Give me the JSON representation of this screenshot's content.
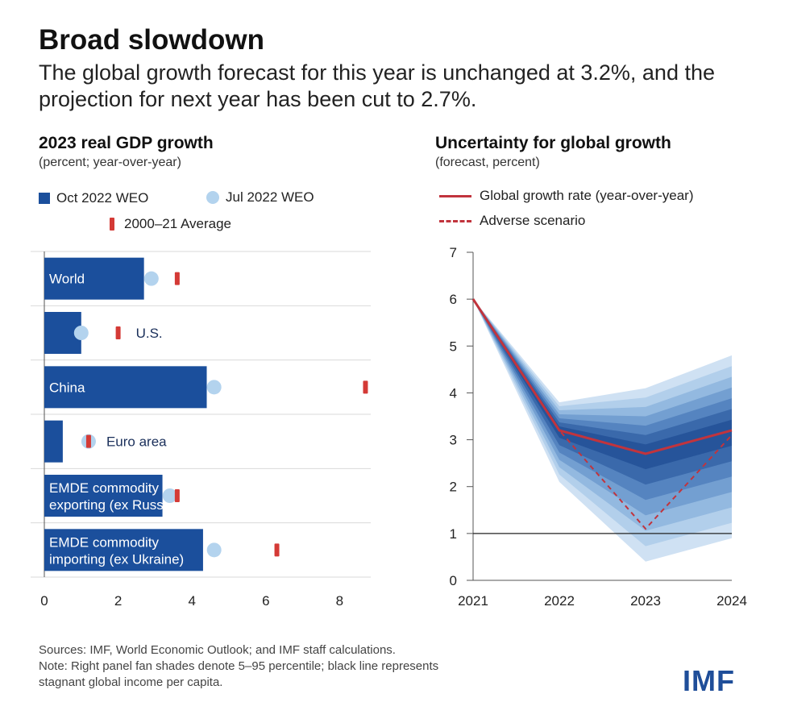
{
  "header": {
    "title": "Broad slowdown",
    "subtitle": "The global growth forecast for this year is unchanged at 3.2%, and the projection for next year has been cut to 2.7%."
  },
  "left_panel": {
    "title": "2023 real GDP growth",
    "subtitle": "(percent; year-over-year)",
    "legend": {
      "oct": "Oct 2022 WEO",
      "jul": "Jul 2022 WEO",
      "avg": "2000–21 Average"
    }
  },
  "right_panel": {
    "title": "Uncertainty for global growth",
    "subtitle": "(forecast, percent)",
    "legend": {
      "global": "Global growth rate (year-over-year)",
      "adverse": "Adverse scenario"
    }
  },
  "colors": {
    "bar": "#1b4f9c",
    "dot": "#b3d3ee",
    "avg": "#d43a36",
    "line": "#c1343d",
    "fan": [
      "#cfe1f3",
      "#b2cfeb",
      "#93b9e0",
      "#739fd1",
      "#5584c0",
      "#3a69ab",
      "#26549a"
    ],
    "logo": "#1f4e99"
  },
  "chart_data": [
    {
      "type": "bar",
      "title": "2023 real GDP growth",
      "subtitle": "(percent; year-over-year)",
      "orientation": "horizontal",
      "categories": [
        "World",
        "U.S.",
        "China",
        "Euro area",
        "EMDE commodity exporting (ex Russia)",
        "EMDE commodity importing (ex Ukraine)"
      ],
      "category_lines": [
        [
          "World"
        ],
        [
          "U.S."
        ],
        [
          "China"
        ],
        [
          "Euro area"
        ],
        [
          "EMDE commodity",
          "exporting (ex Russia)"
        ],
        [
          "EMDE commodity",
          "importing (ex Ukraine)"
        ]
      ],
      "series": [
        {
          "name": "Oct 2022 WEO",
          "kind": "bar",
          "values": [
            2.7,
            1.0,
            4.4,
            0.5,
            3.2,
            4.3
          ]
        },
        {
          "name": "Jul 2022 WEO",
          "kind": "dot",
          "values": [
            2.9,
            1.0,
            4.6,
            1.2,
            3.4,
            4.6
          ]
        },
        {
          "name": "2000–21 Average",
          "kind": "tick",
          "values": [
            3.6,
            2.0,
            8.7,
            1.2,
            3.6,
            6.3
          ]
        }
      ],
      "xlim": [
        0,
        9
      ],
      "xticks": [
        0,
        2,
        4,
        6,
        8
      ],
      "grid": false
    },
    {
      "type": "area",
      "title": "Uncertainty for global growth",
      "subtitle": "(forecast, percent)",
      "x": [
        2021,
        2022,
        2023,
        2024
      ],
      "xticks": [
        "2021",
        "2022",
        "2023",
        "2024"
      ],
      "ylim": [
        0,
        7
      ],
      "yticks": [
        0,
        1,
        2,
        3,
        4,
        5,
        6,
        7
      ],
      "series": [
        {
          "name": "Global growth rate (year-over-year)",
          "style": "solid",
          "values": [
            6.0,
            3.2,
            2.7,
            3.2
          ]
        },
        {
          "name": "Adverse scenario",
          "style": "dashed",
          "values": [
            6.0,
            3.2,
            1.1,
            3.1
          ]
        }
      ],
      "fan_lower": [
        6.0,
        2.1,
        0.4,
        0.9
      ],
      "fan_upper": [
        6.0,
        3.8,
        4.1,
        4.8
      ],
      "reference_line": {
        "y": 1
      }
    }
  ],
  "footer": {
    "sources": "Sources: IMF, World Economic Outlook; and IMF staff calculations.",
    "note_line1": "Note: Right panel fan shades denote 5–95 percentile; black line represents",
    "note_line2": "stagnant global income per capita."
  },
  "logo": "IMF"
}
